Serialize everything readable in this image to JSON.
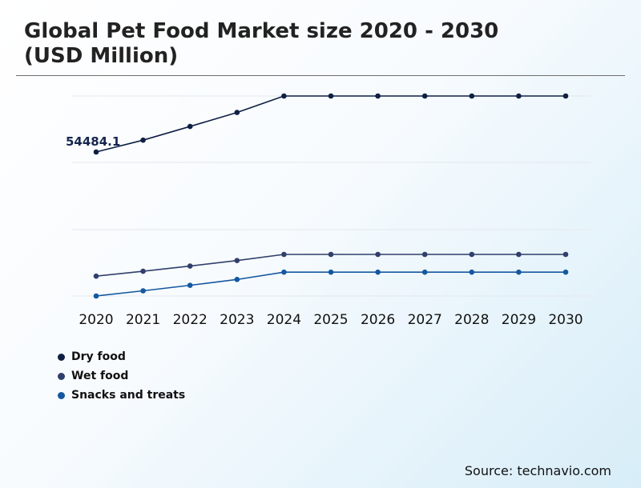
{
  "chart_data": {
    "type": "line",
    "title": "Global Pet Food Market size 2020 - 2030\n(USD Million)",
    "xlabel": "",
    "ylabel": "",
    "categories": [
      "2020",
      "2021",
      "2022",
      "2023",
      "2024",
      "2025",
      "2026",
      "2027",
      "2028",
      "2029",
      "2030"
    ],
    "series": [
      {
        "name": "Dry food",
        "color": "#0f1f44",
        "values": [
          54484.1,
          58300,
          62700,
          67200,
          72500,
          72500,
          72500,
          72500,
          72500,
          72500,
          72500
        ]
      },
      {
        "name": "Wet food",
        "color": "#303f6b",
        "values": [
          6500,
          8100,
          9800,
          11600,
          13600,
          13600,
          13600,
          13600,
          13600,
          13600,
          13600
        ]
      },
      {
        "name": "Snacks and treats",
        "color": "#1558a0",
        "values": [
          0,
          1700,
          3500,
          5400,
          7800,
          7800,
          7800,
          7800,
          7800,
          7800,
          7800
        ]
      }
    ],
    "annotations": [
      {
        "series": 0,
        "index": 0,
        "text": "54484.1"
      }
    ],
    "ylim": [
      0,
      72500
    ],
    "grid": true,
    "legend": "bottom-left"
  },
  "source": "Source: technavio.com"
}
